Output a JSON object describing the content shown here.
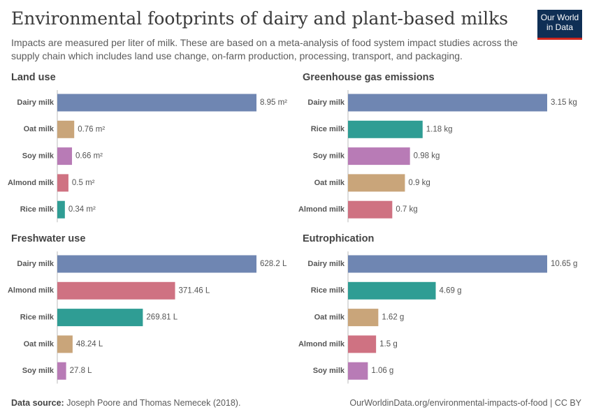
{
  "title": "Environmental footprints of dairy and plant-based milks",
  "subtitle": "Impacts are measured per liter of milk. These are based on a meta-analysis of food system impact studies across the supply chain which includes land use change, on-farm production, processing, transport, and packaging.",
  "logo": [
    "Our World",
    "in Data"
  ],
  "source_label": "Data source:",
  "source": "Joseph Poore and Thomas Nemecek (2018).",
  "url": "OurWorldinData.org/environmental-impacts-of-food | CC BY",
  "chart_data": [
    {
      "type": "bar",
      "orientation": "horizontal",
      "title": "Land use",
      "categories": [
        "Dairy milk",
        "Oat milk",
        "Soy milk",
        "Almond milk",
        "Rice milk"
      ],
      "values": [
        8.95,
        0.76,
        0.66,
        0.5,
        0.34
      ],
      "value_labels": [
        "8.95 m²",
        "0.76 m²",
        "0.66 m²",
        "0.5 m²",
        "0.34 m²"
      ],
      "colors": [
        "#6f86b2",
        "#c9a57a",
        "#b87bb6",
        "#cf7282",
        "#2f9d94"
      ]
    },
    {
      "type": "bar",
      "orientation": "horizontal",
      "title": "Greenhouse gas emissions",
      "categories": [
        "Dairy milk",
        "Rice milk",
        "Soy milk",
        "Oat milk",
        "Almond milk"
      ],
      "values": [
        3.15,
        1.18,
        0.98,
        0.9,
        0.7
      ],
      "value_labels": [
        "3.15 kg",
        "1.18 kg",
        "0.98 kg",
        "0.9 kg",
        "0.7 kg"
      ],
      "colors": [
        "#6f86b2",
        "#2f9d94",
        "#b87bb6",
        "#c9a57a",
        "#cf7282"
      ]
    },
    {
      "type": "bar",
      "orientation": "horizontal",
      "title": "Freshwater use",
      "categories": [
        "Dairy milk",
        "Almond milk",
        "Rice milk",
        "Oat milk",
        "Soy milk"
      ],
      "values": [
        628.2,
        371.46,
        269.81,
        48.24,
        27.8
      ],
      "value_labels": [
        "628.2 L",
        "371.46 L",
        "269.81 L",
        "48.24 L",
        "27.8 L"
      ],
      "colors": [
        "#6f86b2",
        "#cf7282",
        "#2f9d94",
        "#c9a57a",
        "#b87bb6"
      ]
    },
    {
      "type": "bar",
      "orientation": "horizontal",
      "title": "Eutrophication",
      "categories": [
        "Dairy milk",
        "Rice milk",
        "Oat milk",
        "Almond milk",
        "Soy milk"
      ],
      "values": [
        10.65,
        4.69,
        1.62,
        1.5,
        1.06
      ],
      "value_labels": [
        "10.65 g",
        "4.69 g",
        "1.62 g",
        "1.5 g",
        "1.06 g"
      ],
      "colors": [
        "#6f86b2",
        "#2f9d94",
        "#c9a57a",
        "#cf7282",
        "#b87bb6"
      ]
    }
  ]
}
